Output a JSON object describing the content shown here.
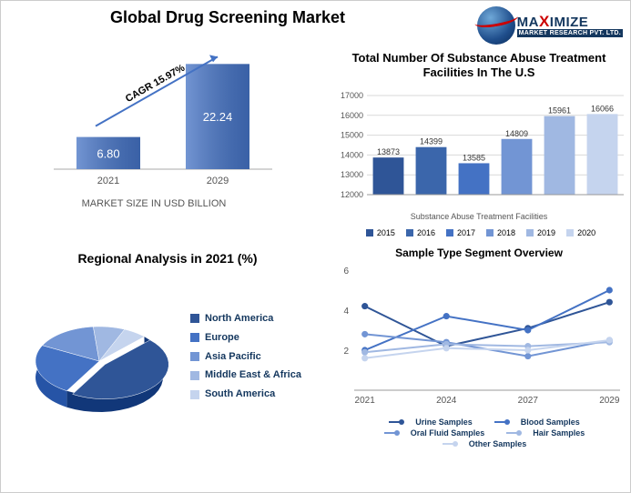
{
  "main_title": "Global Drug Screening Market",
  "logo": {
    "main_html": "MAXIMIZE",
    "sub": "MARKET RESEARCH PVT. LTD."
  },
  "market_size": {
    "type": "bar",
    "cagr_label": "CAGR 15.97%",
    "caption": "MARKET SIZE IN USD BILLION",
    "categories": [
      "2021",
      "2029"
    ],
    "values": [
      6.8,
      22.24
    ],
    "value_labels": [
      "6.80",
      "22.24"
    ],
    "bar_colors": [
      "#4472c4",
      "#4472c4"
    ],
    "ylim": [
      0,
      25
    ],
    "background_color": "#ffffff",
    "arrow_color": "#4472c4",
    "label_fontsize": 11
  },
  "facilities": {
    "type": "bar",
    "title": "Total Number Of Substance Abuse Treatment Facilities In The U.S",
    "years": [
      "2015",
      "2016",
      "2017",
      "2018",
      "2019",
      "2020"
    ],
    "values": [
      13873,
      14399,
      13585,
      14809,
      15961,
      16066
    ],
    "bar_colors": [
      "#2f5597",
      "#3b66ab",
      "#4472c4",
      "#7295d4",
      "#a0b8e2",
      "#c5d4ee"
    ],
    "ylim": [
      12000,
      17000
    ],
    "ytick_step": 1000,
    "xlabel": "Substance Abuse Treatment Facilities",
    "grid_color": "#d9d9d9",
    "title_fontsize": 13,
    "label_fontsize": 9
  },
  "regional": {
    "type": "pie",
    "title": "Regional Analysis in 2021 (%)",
    "slices": [
      {
        "label": "North America",
        "value": 46,
        "color": "#2f5597"
      },
      {
        "label": "Europe",
        "value": 24,
        "color": "#4472c4"
      },
      {
        "label": "Asia Pacific",
        "value": 16,
        "color": "#7295d4"
      },
      {
        "label": "Middle East & Africa",
        "value": 8,
        "color": "#a0b8e2"
      },
      {
        "label": "South America",
        "value": 6,
        "color": "#c5d4ee"
      }
    ],
    "title_fontsize": 14,
    "is_3d": true
  },
  "sample_type": {
    "type": "line",
    "title": "Sample Type Segment Overview",
    "x_categories": [
      "2021",
      "2024",
      "2027",
      "2029"
    ],
    "ylim": [
      0,
      6
    ],
    "ytick_step": 2,
    "series": [
      {
        "name": "Urine Samples",
        "color": "#2f5597",
        "values": [
          4.2,
          2.2,
          3.1,
          4.4
        ]
      },
      {
        "name": "Blood Samples",
        "color": "#4472c4",
        "values": [
          2.0,
          3.7,
          3.0,
          5.0
        ]
      },
      {
        "name": "Oral Fluid Samples",
        "color": "#7295d4",
        "values": [
          2.8,
          2.4,
          1.7,
          2.5
        ]
      },
      {
        "name": "Hair Samples",
        "color": "#a0b8e2",
        "values": [
          1.9,
          2.3,
          2.2,
          2.4
        ]
      },
      {
        "name": "Other Samples",
        "color": "#c5d4ee",
        "values": [
          1.6,
          2.1,
          2.0,
          2.5
        ]
      }
    ],
    "marker_style": "circle",
    "marker_size": 5,
    "line_width": 2,
    "title_fontsize": 12
  }
}
